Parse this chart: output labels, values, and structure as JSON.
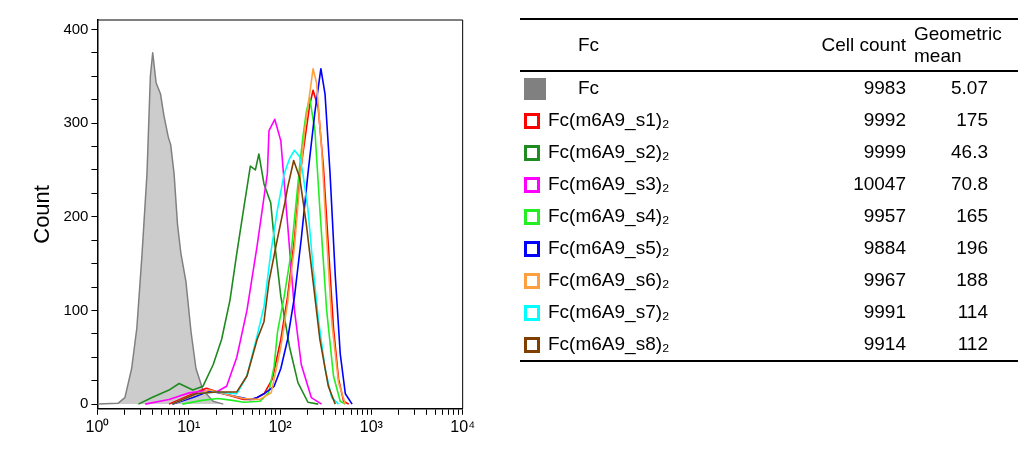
{
  "chart_data": {
    "type": "line",
    "ylabel": "Count",
    "legend": "right",
    "legend_title": "Fc",
    "log": "x",
    "xlim": [
      1,
      10000
    ],
    "ylim": [
      -5,
      410
    ],
    "xticks": [
      {
        "value": 1,
        "label": "10⁰"
      },
      {
        "value": 2,
        "label": null
      },
      {
        "value": 3,
        "label": null
      },
      {
        "value": 4,
        "label": null
      },
      {
        "value": 5,
        "label": null
      },
      {
        "value": 6,
        "label": null
      },
      {
        "value": 7,
        "label": null
      },
      {
        "value": 8,
        "label": null
      },
      {
        "value": 9,
        "label": null
      },
      {
        "value": 10,
        "label": "10¹"
      },
      {
        "value": 20,
        "label": null
      },
      {
        "value": 30,
        "label": null
      },
      {
        "value": 40,
        "label": null
      },
      {
        "value": 50,
        "label": null
      },
      {
        "value": 60,
        "label": null
      },
      {
        "value": 70,
        "label": null
      },
      {
        "value": 80,
        "label": null
      },
      {
        "value": 90,
        "label": null
      },
      {
        "value": 100,
        "label": "10²"
      },
      {
        "value": 200,
        "label": null
      },
      {
        "value": 300,
        "label": null
      },
      {
        "value": 400,
        "label": null
      },
      {
        "value": 500,
        "label": null
      },
      {
        "value": 600,
        "label": null
      },
      {
        "value": 700,
        "label": null
      },
      {
        "value": 800,
        "label": null
      },
      {
        "value": 900,
        "label": null
      },
      {
        "value": 1000,
        "label": "10³"
      },
      {
        "value": 2000,
        "label": null
      },
      {
        "value": 3000,
        "label": null
      },
      {
        "value": 4000,
        "label": null
      },
      {
        "value": 5000,
        "label": null
      },
      {
        "value": 6000,
        "label": null
      },
      {
        "value": 7000,
        "label": null
      },
      {
        "value": 8000,
        "label": null
      },
      {
        "value": 9000,
        "label": null
      },
      {
        "value": 10000,
        "label": "10⁴"
      }
    ],
    "yticks": [
      0,
      {
        "value": 25,
        "label": null
      },
      {
        "value": 50,
        "label": null
      },
      {
        "value": 75,
        "label": null
      },
      100,
      {
        "value": 125,
        "label": null
      },
      {
        "value": 150,
        "label": null
      },
      {
        "value": 175,
        "label": null
      },
      200,
      {
        "value": 225,
        "label": null
      },
      {
        "value": 250,
        "label": null
      },
      {
        "value": 275,
        "label": null
      },
      300,
      {
        "value": 325,
        "label": null
      },
      {
        "value": 350,
        "label": null
      },
      {
        "value": 375,
        "label": null
      },
      400
    ],
    "annotations": [
      "Cell count",
      "Geometric mean",
      "9983",
      "5.07",
      "9992",
      "175",
      "9999",
      "46.3",
      "10047",
      "70.8",
      "9957",
      "165",
      "9884",
      "196",
      "9967",
      "188",
      "9991",
      "114",
      "9914",
      "112"
    ],
    "series": [
      {
        "name": "Fc",
        "type": "area",
        "color": "#808080",
        "x": [
          1.0,
          1.69,
          2.0,
          2.37,
          2.7,
          3.07,
          3.49,
          3.8,
          4.03,
          4.39,
          4.91,
          5.35,
          5.97,
          6.34,
          6.91,
          7.53,
          8.2,
          9.31,
          10.6,
          12.0,
          14.3,
          18.5,
          23.9
        ],
        "values": [
          0,
          1,
          7,
          38,
          81,
          158,
          246,
          350,
          375,
          343,
          331,
          308,
          285,
          277,
          246,
          192,
          161,
          131,
          77,
          38,
          15,
          3,
          0
        ]
      },
      {
        "name": "Fc(m6A9_s1)₂",
        "color": "#ff0000",
        "x": [
          6.08,
          11.1,
          15.6,
          23.9,
          39.9,
          51.6,
          66.7,
          82.5,
          102,
          121,
          144,
          164,
          186,
          211,
          230,
          262,
          298,
          338,
          385,
          437,
          497,
          565
        ],
        "values": [
          0,
          11,
          17,
          11,
          5,
          5,
          11,
          27,
          69,
          115,
          177,
          242,
          281,
          319,
          335,
          316,
          254,
          169,
          81,
          27,
          3,
          0
        ]
      },
      {
        "name": "Fc(m6A9_s2)₂",
        "color": "#1f8a1f",
        "x": [
          2.81,
          3.96,
          6.08,
          7.85,
          11.1,
          14.3,
          18.5,
          22.9,
          28.3,
          33.6,
          39.9,
          47.3,
          53.7,
          58.6,
          66.7,
          79.0,
          86.1,
          102,
          127,
          157,
          202,
          262
        ],
        "values": [
          0,
          7,
          15,
          22,
          15,
          19,
          42,
          69,
          111,
          161,
          208,
          254,
          250,
          267,
          235,
          215,
          177,
          115,
          61,
          23,
          2,
          0
        ]
      },
      {
        "name": "Fc(m6A9_s3)₂",
        "color": "#ff00ff",
        "x": [
          3.34,
          6.08,
          10.1,
          14.3,
          20.1,
          26.0,
          33.6,
          43.4,
          56.1,
          72.6,
          75.7,
          87.5,
          102,
          121,
          144,
          171,
          220,
          285
        ],
        "values": [
          0,
          5,
          12,
          14,
          13,
          19,
          50,
          100,
          169,
          246,
          292,
          304,
          281,
          192,
          100,
          42,
          7,
          0
        ]
      },
      {
        "name": "Fc(m6A9_s4)₂",
        "color": "#22ee22",
        "x": [
          8.5,
          14,
          21,
          30,
          40,
          60,
          75,
          86,
          93.8,
          111,
          132,
          150,
          164,
          178,
          194,
          211,
          241,
          273,
          324,
          385,
          456,
          519
        ],
        "values": [
          0,
          4,
          6,
          4,
          2,
          3,
          12,
          40,
          77,
          115,
          161,
          215,
          254,
          285,
          312,
          327,
          292,
          208,
          100,
          30,
          3,
          0
        ]
      },
      {
        "name": "Fc(m6A9_s5)₂",
        "color": "#0000ff",
        "x": [
          6.6,
          11.1,
          16.9,
          23.9,
          47.3,
          56.1,
          66.7,
          86.1,
          102,
          121,
          144,
          171,
          202,
          241,
          280,
          311,
          353,
          402,
          456,
          519,
          615
        ],
        "values": [
          0,
          7,
          14,
          11,
          5,
          7,
          11,
          19,
          38,
          69,
          115,
          177,
          246,
          312,
          358,
          331,
          246,
          138,
          54,
          11,
          0
        ]
      },
      {
        "name": "Fc(m6A9_s6)₂",
        "color": "#ffa040",
        "x": [
          6.6,
          11.1,
          16.9,
          23.9,
          40,
          60,
          80,
          102,
          121,
          144,
          164,
          186,
          211,
          230,
          251,
          285,
          324,
          368,
          437,
          519
        ],
        "values": [
          0,
          9,
          15,
          11,
          6,
          5,
          12,
          61,
          108,
          169,
          235,
          292,
          331,
          358,
          343,
          273,
          177,
          88,
          23,
          0
        ]
      },
      {
        "name": "Fc(m6A9_s7)₂",
        "color": "#00ffff",
        "x": [
          6.6,
          12.0,
          20.1,
          33.6,
          43.4,
          56.1,
          66.7,
          79.0,
          93.8,
          111,
          127,
          144,
          164,
          178,
          202,
          230,
          262,
          311,
          368,
          437
        ],
        "values": [
          0,
          11,
          13,
          11,
          30,
          73,
          104,
          161,
          208,
          246,
          262,
          271,
          264,
          246,
          208,
          146,
          92,
          38,
          7,
          0
        ]
      },
      {
        "name": "Fc(m6A9_s8)₂",
        "color": "#7f3f00",
        "x": [
          6.6,
          12.0,
          20.1,
          33.6,
          43.4,
          56.1,
          66.7,
          75.7,
          93.8,
          113,
          121,
          141,
          164,
          194,
          230,
          273,
          338,
          402
        ],
        "values": [
          0,
          11,
          13,
          13,
          30,
          69,
          88,
          131,
          177,
          215,
          231,
          260,
          242,
          192,
          131,
          69,
          19,
          0
        ]
      }
    ]
  }
}
